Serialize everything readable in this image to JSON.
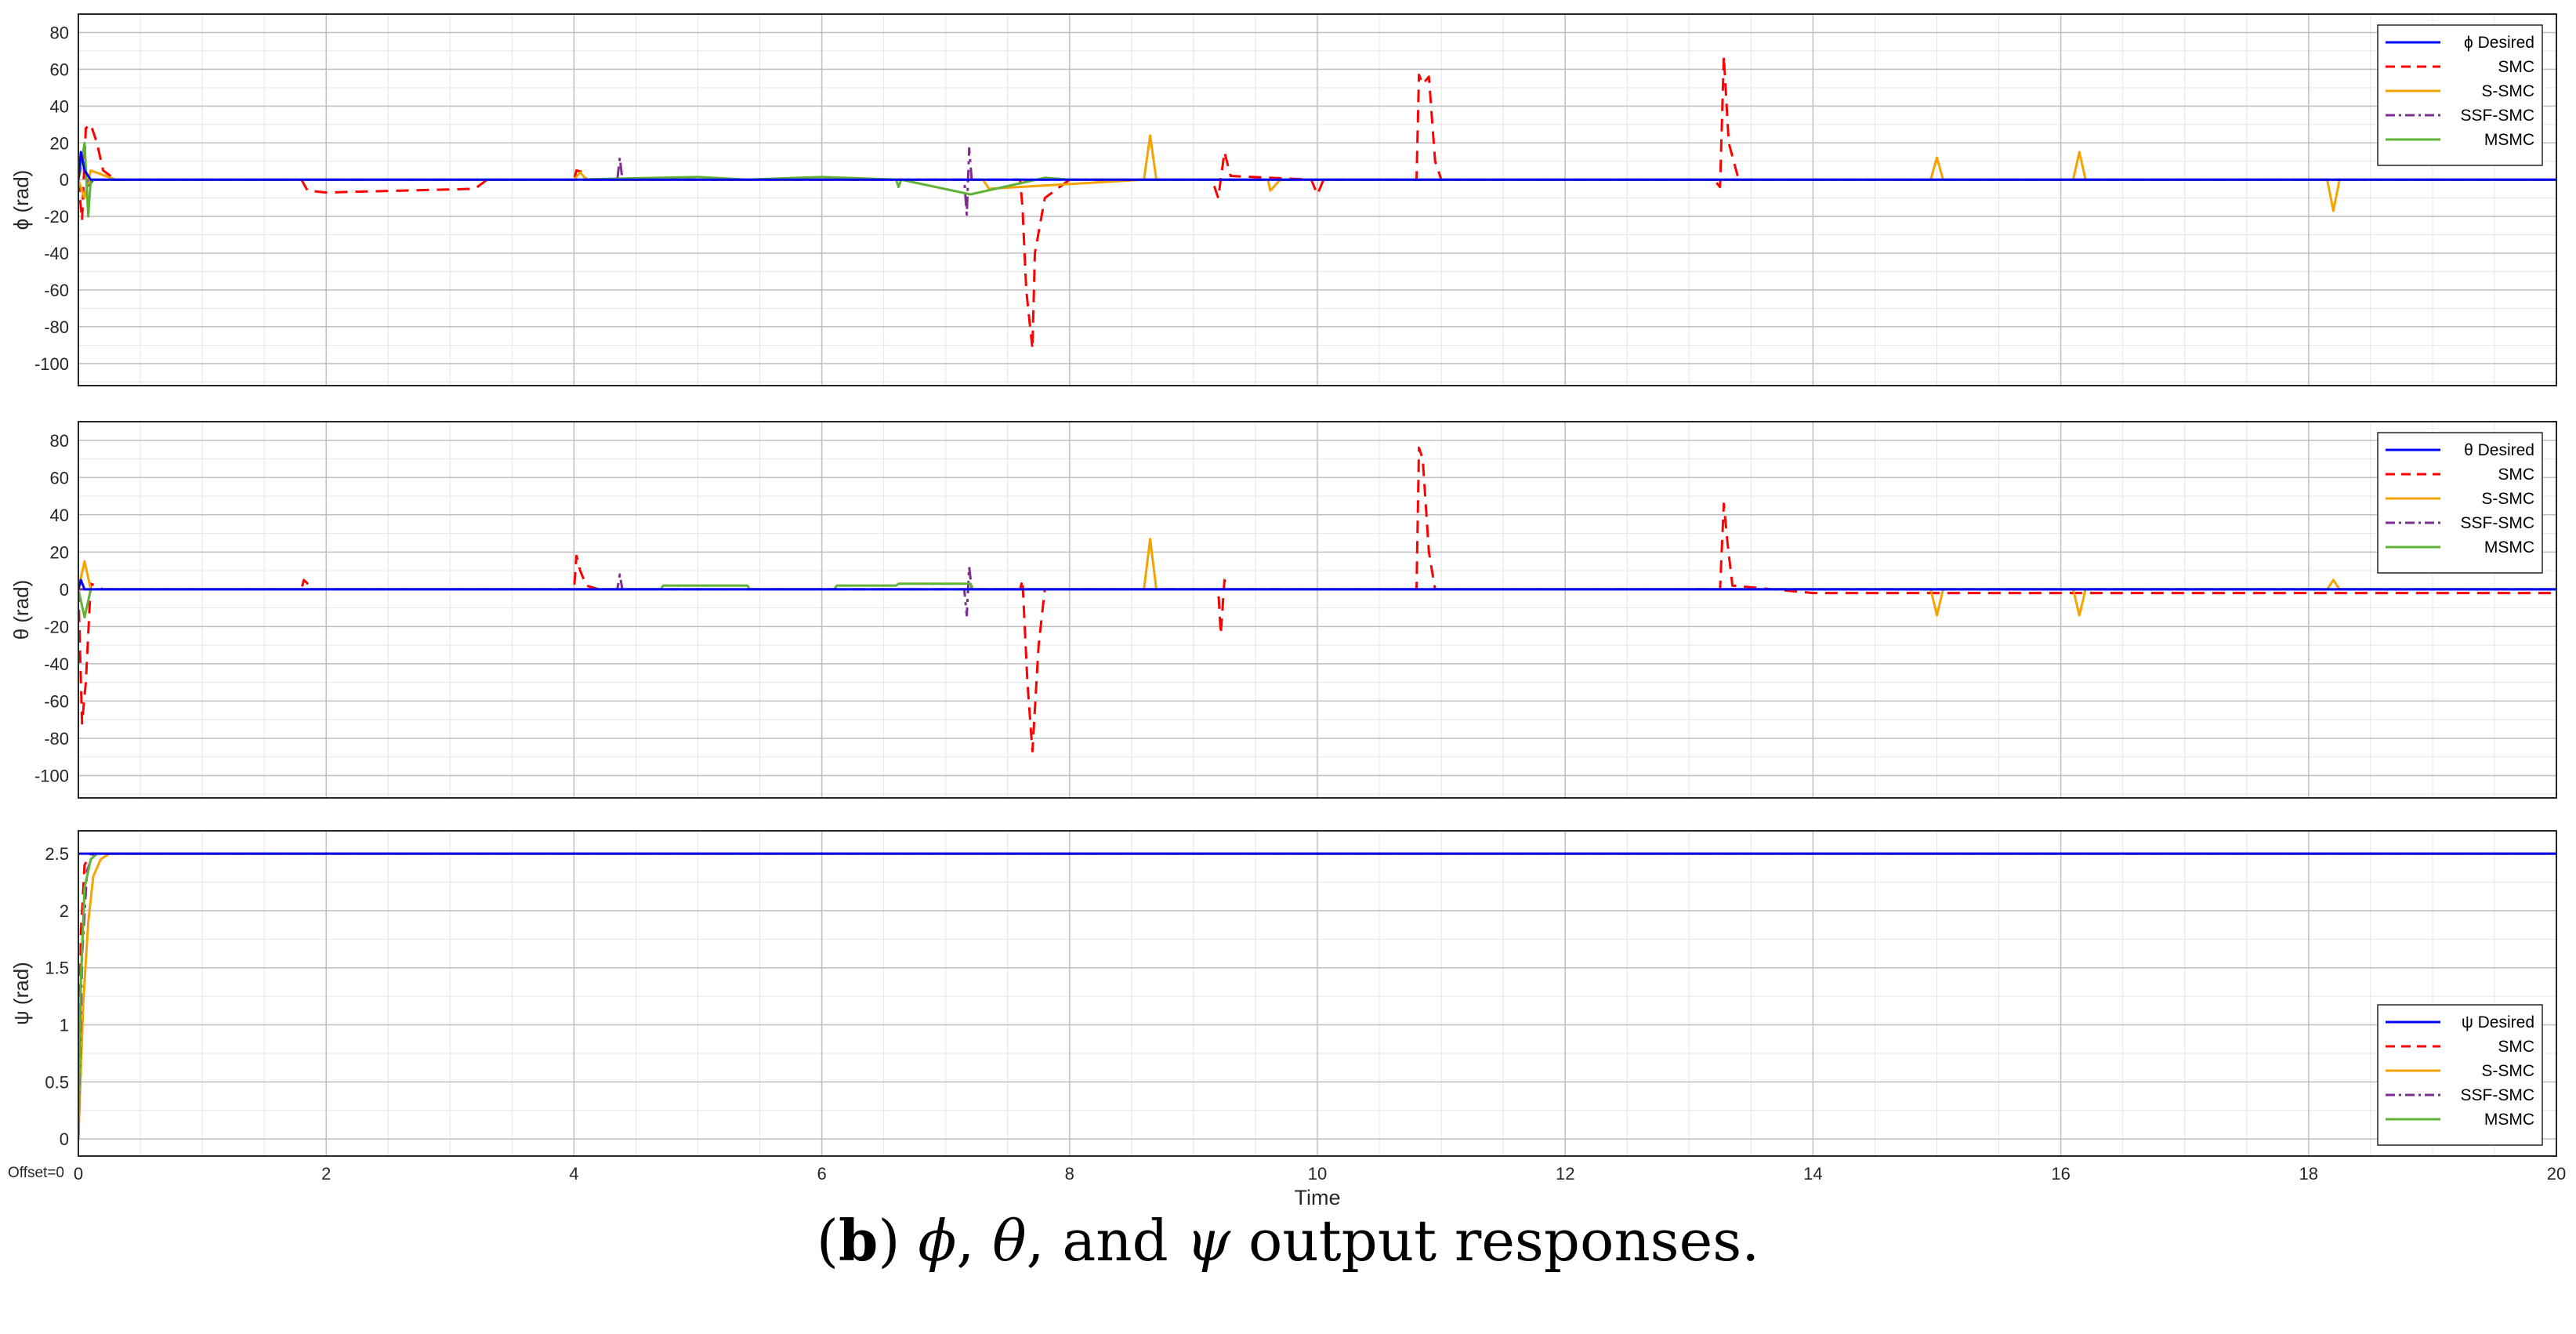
{
  "caption": {
    "label": "b",
    "sym1": "ϕ",
    "sep1": ", ",
    "sym2": "θ",
    "sep2": ", and ",
    "sym3": "ψ",
    "rest": " output responses."
  },
  "offset_note": "Offset=0",
  "colors": {
    "desired": "#0000ff",
    "smc": "#ff0000",
    "ssmc": "#f5a300",
    "ssfsmc": "#7e2f8e",
    "msmc": "#5fb336",
    "grid_major": "#bfbfbf",
    "grid_minor": "#e6e6e6",
    "axes": "#262626"
  },
  "chart_data": [
    {
      "type": "line",
      "ylabel": "ϕ (rad)",
      "xlabel": "",
      "xlim": [
        0,
        20
      ],
      "ylim": [
        -112,
        90
      ],
      "yticks": [
        80,
        60,
        40,
        20,
        0,
        -20,
        -40,
        -60,
        -80,
        -100
      ],
      "xticks": [],
      "grid": true,
      "legend_position": "top-right",
      "series": [
        {
          "name": "ϕ Desired",
          "style": "solid",
          "color_key": "desired",
          "x": [
            0,
            0.02,
            0.05,
            0.1,
            20
          ],
          "y": [
            0,
            15,
            5,
            0,
            0
          ]
        },
        {
          "name": "SMC",
          "style": "dashed",
          "color_key": "smc",
          "x": [
            0,
            0.03,
            0.06,
            0.1,
            0.15,
            0.2,
            0.3,
            1.8,
            1.85,
            2.0,
            3.2,
            3.3,
            4.0,
            4.02,
            4.08,
            4.1,
            7.6,
            7.62,
            7.65,
            7.7,
            7.72,
            7.8,
            8.0,
            9.15,
            9.2,
            9.25,
            9.3,
            9.95,
            10.0,
            10.05,
            10.8,
            10.82,
            10.85,
            10.9,
            10.95,
            11.0,
            13.2,
            13.25,
            13.28,
            13.32,
            13.4,
            20
          ],
          "y": [
            0,
            -22,
            28,
            30,
            20,
            5,
            0,
            0,
            -6,
            -7,
            -5,
            0,
            0,
            5,
            4,
            0,
            0,
            -15,
            -60,
            -92,
            -40,
            -10,
            0,
            0,
            -10,
            15,
            2,
            0,
            -8,
            0,
            0,
            57,
            52,
            56,
            10,
            0,
            0,
            -4,
            67,
            20,
            0,
            0
          ]
        },
        {
          "name": "S-SMC",
          "style": "solid",
          "color_key": "ssmc",
          "x": [
            0,
            0.05,
            0.1,
            0.3,
            4.0,
            4.05,
            4.1,
            7.3,
            7.35,
            8.6,
            8.65,
            8.7,
            9.6,
            9.62,
            9.7,
            14.95,
            15.0,
            15.05,
            16.1,
            16.15,
            16.2,
            18.15,
            18.2,
            18.25,
            20
          ],
          "y": [
            0,
            -10,
            5,
            0,
            0,
            4,
            0,
            0,
            -5,
            0,
            24,
            0,
            0,
            -6,
            0,
            0,
            12,
            0,
            0,
            15,
            0,
            0,
            -17,
            0,
            0
          ]
        },
        {
          "name": "SSF-SMC",
          "style": "dashdot",
          "color_key": "ssfsmc",
          "x": [
            0,
            0.04,
            0.08,
            0.12,
            4.35,
            4.37,
            4.39,
            7.15,
            7.17,
            7.19,
            7.21,
            20
          ],
          "y": [
            0,
            12,
            -4,
            0,
            0,
            12,
            0,
            0,
            -19,
            17,
            0,
            0
          ]
        },
        {
          "name": "MSMC",
          "style": "solid",
          "color_key": "msmc",
          "x": [
            0,
            0.05,
            0.08,
            0.1,
            4.0,
            5.0,
            5.4,
            6.0,
            6.6,
            6.62,
            6.64,
            7.2,
            7.8,
            8.0,
            20
          ],
          "y": [
            0,
            20,
            -20,
            0,
            0,
            1.5,
            0,
            1.5,
            0,
            -4,
            0,
            -8,
            1,
            0,
            0
          ]
        }
      ]
    },
    {
      "type": "line",
      "ylabel": "θ (rad)",
      "xlabel": "",
      "xlim": [
        0,
        20
      ],
      "ylim": [
        -112,
        90
      ],
      "yticks": [
        80,
        60,
        40,
        20,
        0,
        -20,
        -40,
        -60,
        -80,
        -100
      ],
      "xticks": [],
      "grid": true,
      "legend_position": "top-right",
      "series": [
        {
          "name": "θ Desired",
          "style": "solid",
          "color_key": "desired",
          "x": [
            0,
            0.02,
            0.05,
            20
          ],
          "y": [
            0,
            5,
            0,
            0
          ]
        },
        {
          "name": "SMC",
          "style": "dashed",
          "color_key": "smc",
          "x": [
            0,
            0.03,
            0.06,
            0.1,
            0.2,
            1.8,
            1.82,
            1.85,
            1.9,
            4.0,
            4.02,
            4.05,
            4.1,
            4.2,
            7.6,
            7.62,
            7.66,
            7.7,
            7.75,
            7.8,
            9.2,
            9.22,
            9.25,
            9.28,
            10.8,
            10.82,
            10.85,
            10.9,
            10.95,
            13.25,
            13.28,
            13.31,
            13.35,
            14.0,
            20
          ],
          "y": [
            0,
            -72,
            -50,
            3,
            0,
            0,
            5,
            3,
            0,
            0,
            18,
            10,
            2,
            0,
            0,
            5,
            -50,
            -87,
            -30,
            0,
            0,
            -24,
            5,
            0,
            0,
            76,
            70,
            20,
            0,
            0,
            46,
            25,
            2,
            -2,
            -2
          ]
        },
        {
          "name": "S-SMC",
          "style": "solid",
          "color_key": "ssmc",
          "x": [
            0,
            0.05,
            0.1,
            8.6,
            8.65,
            8.7,
            14.95,
            15.0,
            15.05,
            16.1,
            16.15,
            16.2,
            18.15,
            18.2,
            18.25,
            20
          ],
          "y": [
            0,
            15,
            0,
            0,
            27,
            0,
            0,
            -14,
            0,
            0,
            -14,
            0,
            0,
            5,
            0,
            0
          ]
        },
        {
          "name": "SSF-SMC",
          "style": "dashdot",
          "color_key": "ssfsmc",
          "x": [
            0,
            4.35,
            4.37,
            4.39,
            7.15,
            7.17,
            7.19,
            7.21,
            20
          ],
          "y": [
            0,
            0,
            8,
            0,
            0,
            -14,
            12,
            0,
            0
          ]
        },
        {
          "name": "MSMC",
          "style": "solid",
          "color_key": "msmc",
          "x": [
            0,
            0.05,
            0.1,
            4.7,
            4.72,
            5.4,
            5.42,
            6.1,
            6.12,
            6.6,
            6.62,
            7.2,
            7.22,
            20
          ],
          "y": [
            0,
            -15,
            0,
            0,
            2,
            2,
            0,
            0,
            2,
            2,
            3,
            3,
            0,
            0
          ]
        }
      ]
    },
    {
      "type": "line",
      "ylabel": "ψ (rad)",
      "xlabel": "Time",
      "xlim": [
        0,
        20
      ],
      "ylim": [
        -0.15,
        2.7
      ],
      "yticks": [
        2.5,
        2,
        1.5,
        1,
        0.5,
        0
      ],
      "xticks": [
        0,
        2,
        4,
        6,
        8,
        10,
        12,
        14,
        16,
        18,
        20
      ],
      "grid": true,
      "legend_position": "bottom-right",
      "series": [
        {
          "name": "ψ Desired",
          "style": "solid",
          "color_key": "desired",
          "x": [
            0,
            0.001,
            20
          ],
          "y": [
            2.5,
            2.5,
            2.5
          ]
        },
        {
          "name": "SMC",
          "style": "dashed",
          "color_key": "smc",
          "x": [
            0,
            0.02,
            0.05,
            0.1,
            0.15,
            20
          ],
          "y": [
            0,
            1.8,
            2.4,
            2.5,
            2.5,
            2.5
          ]
        },
        {
          "name": "S-SMC",
          "style": "solid",
          "color_key": "ssmc",
          "x": [
            0,
            0.04,
            0.08,
            0.12,
            0.18,
            0.25,
            20
          ],
          "y": [
            0,
            1.2,
            1.9,
            2.3,
            2.45,
            2.5,
            2.5
          ]
        },
        {
          "name": "SSF-SMC",
          "style": "dashdot",
          "color_key": "ssfsmc",
          "x": [
            0,
            0.03,
            0.07,
            0.12,
            20
          ],
          "y": [
            0,
            1.6,
            2.35,
            2.5,
            2.5
          ]
        },
        {
          "name": "MSMC",
          "style": "solid",
          "color_key": "msmc",
          "x": [
            0,
            0.02,
            0.05,
            0.1,
            0.15,
            20
          ],
          "y": [
            0,
            1.4,
            2.2,
            2.45,
            2.5,
            2.5
          ]
        }
      ]
    }
  ]
}
